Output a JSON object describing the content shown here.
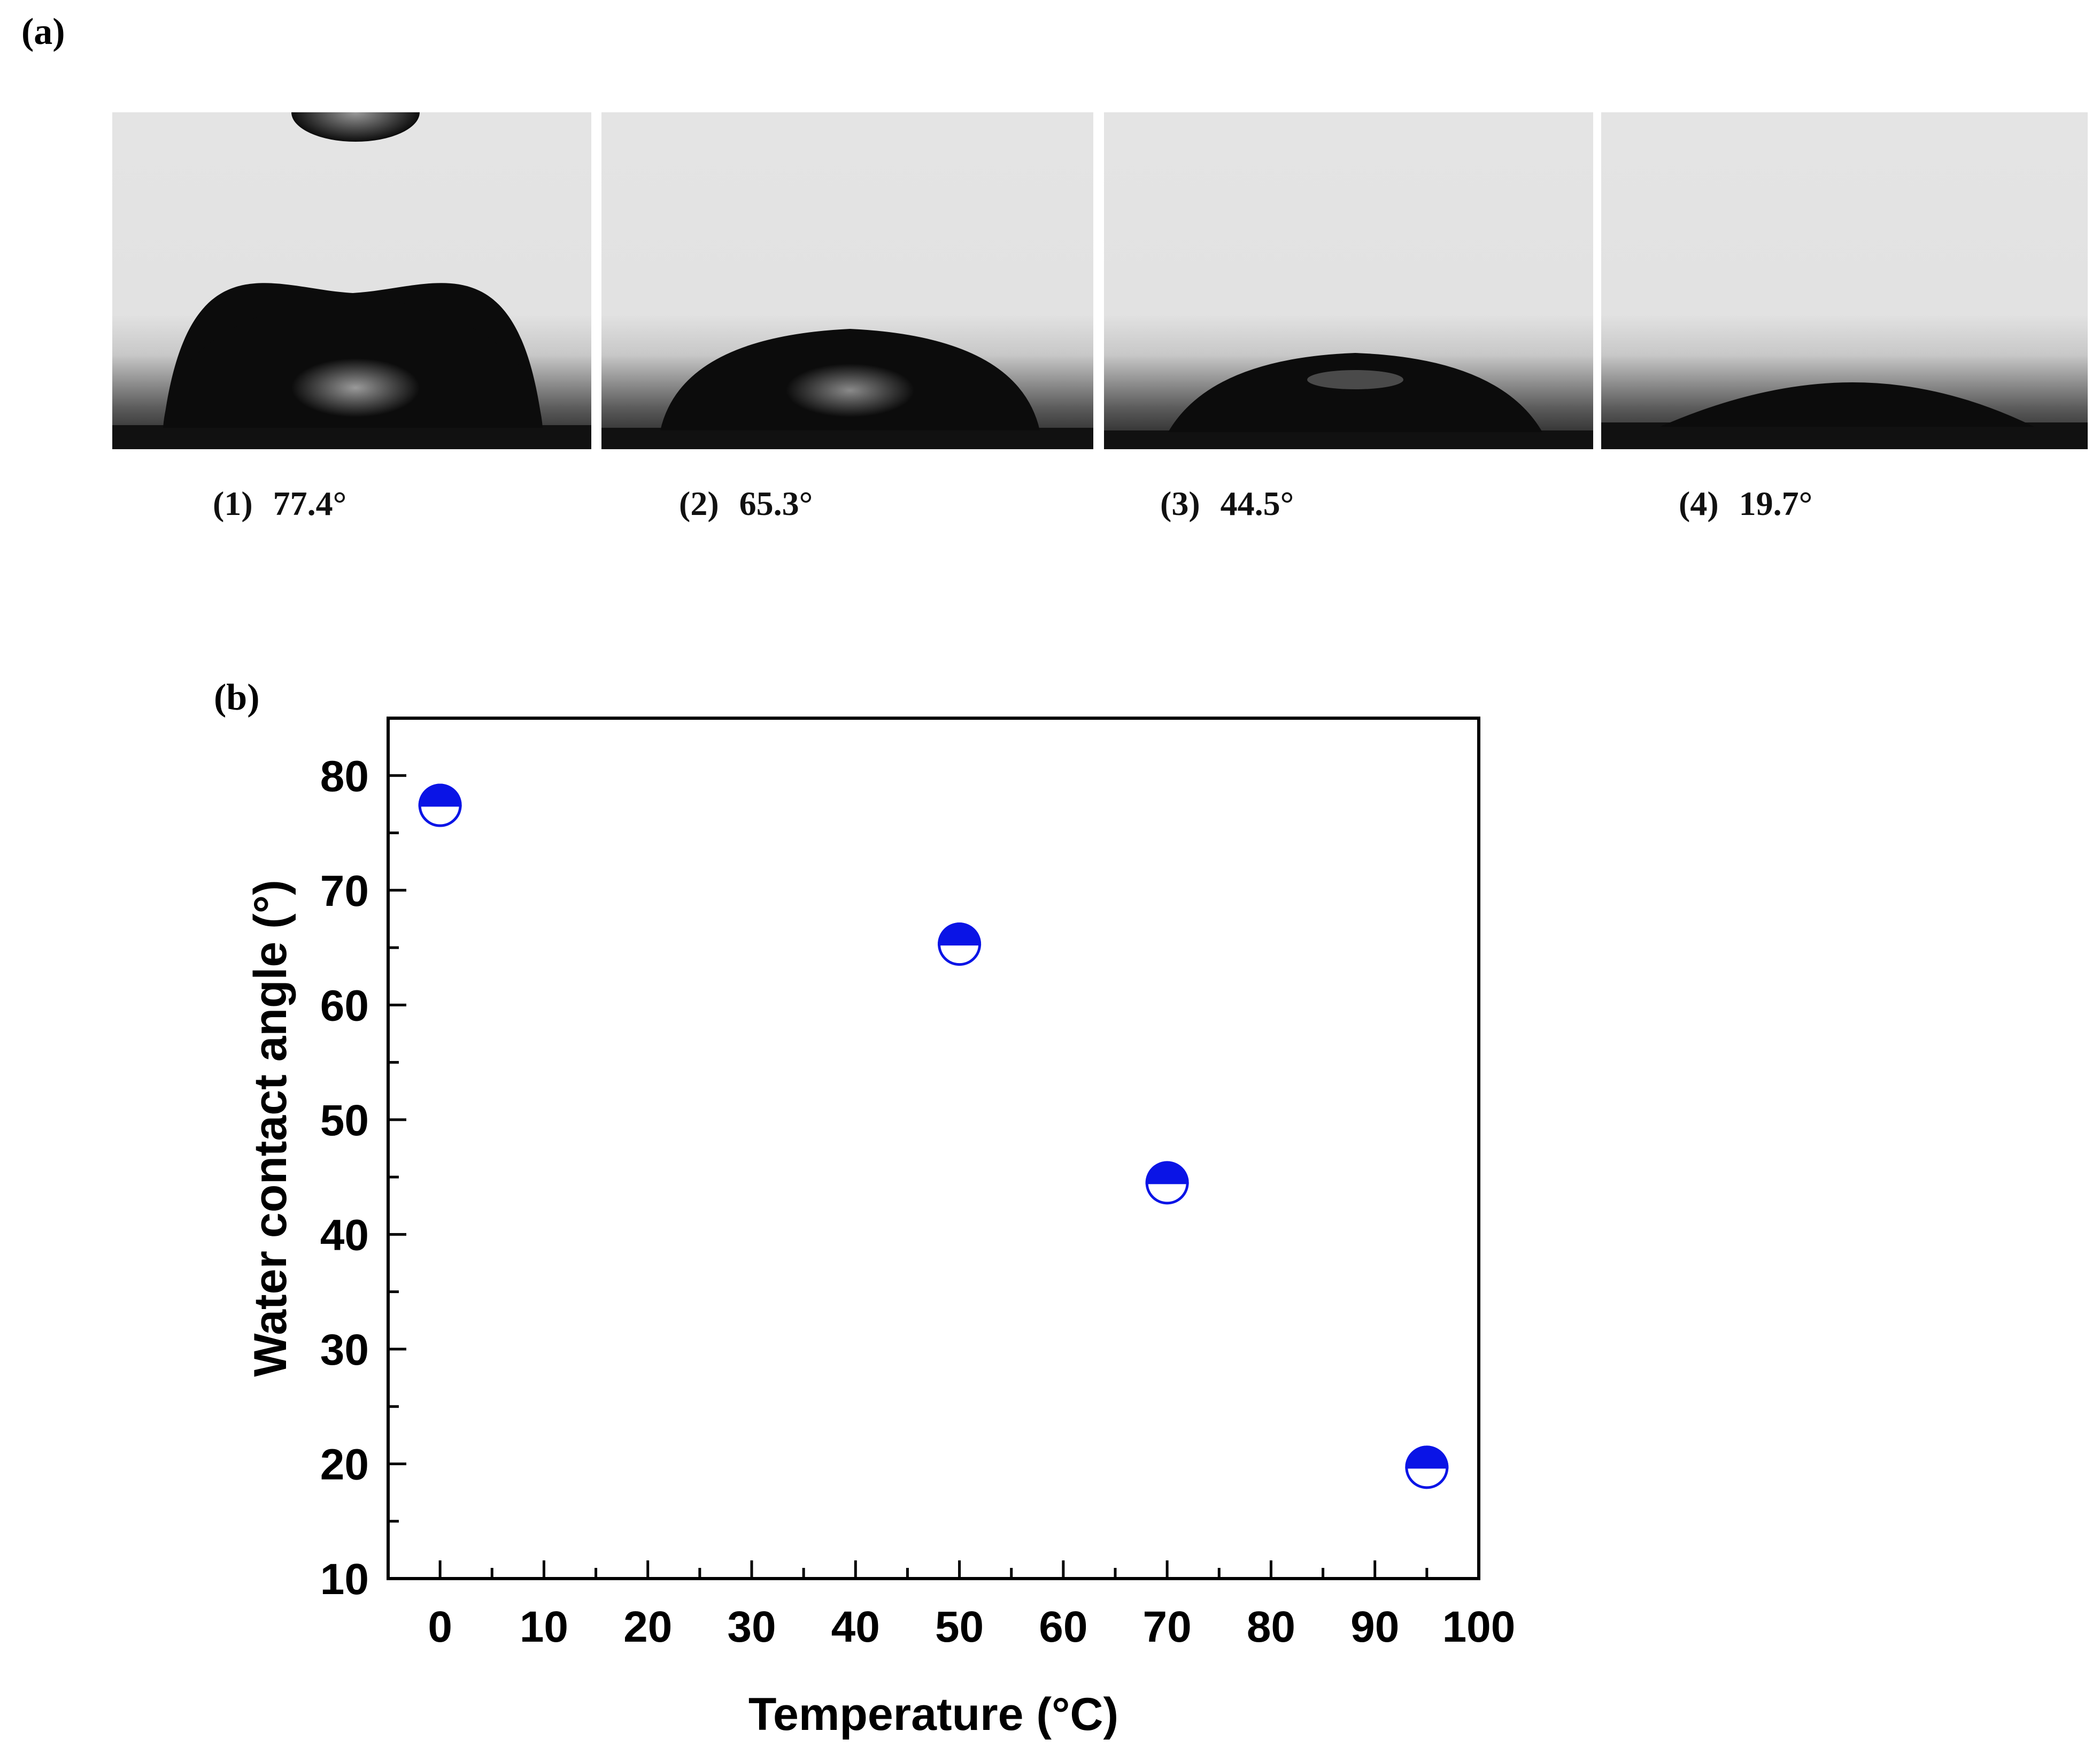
{
  "panels": {
    "a": "(a)",
    "b": "(b)"
  },
  "droplets": [
    {
      "index": "(1)",
      "angle": "77.4°",
      "angle_value": 77.4
    },
    {
      "index": "(2)",
      "angle": "65.3°",
      "angle_value": 65.3
    },
    {
      "index": "(3)",
      "angle": "44.5°",
      "angle_value": 44.5
    },
    {
      "index": "(4)",
      "angle": "19.7°",
      "angle_value": 19.7
    }
  ],
  "colors": {
    "marker": "#0a14e6",
    "axis": "#000000",
    "photo_background": "#e4e4e4",
    "droplet": "#0c0c0c"
  },
  "chart_data": {
    "type": "scatter",
    "title": "",
    "xlabel": "Temperature (°C)",
    "ylabel": "Water contact angle (°)",
    "xlim": [
      -5,
      100
    ],
    "ylim": [
      10,
      85
    ],
    "xticks": [
      0,
      10,
      20,
      30,
      40,
      50,
      60,
      70,
      80,
      90,
      100
    ],
    "xtick_labels": [
      "0",
      "10",
      "20",
      "30",
      "40",
      "50",
      "60",
      "70",
      "80",
      "90",
      "100"
    ],
    "yticks": [
      10,
      20,
      30,
      40,
      50,
      60,
      70,
      80
    ],
    "ytick_labels": [
      "10",
      "20",
      "30",
      "40",
      "50",
      "60",
      "70",
      "80"
    ],
    "grid": false,
    "marker": "half-filled circle",
    "series": [
      {
        "x": [
          0,
          50,
          70,
          95
        ],
        "y": [
          77.4,
          65.3,
          44.5,
          19.7
        ]
      }
    ]
  }
}
